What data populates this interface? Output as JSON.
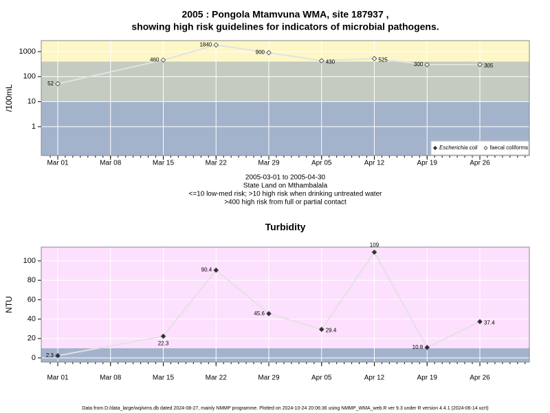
{
  "chart_data": [
    {
      "type": "line",
      "title": [
        "2005 : Pongola Mtamvuna WMA, site 187937 ,",
        "showing high risk guidelines for indicators of microbial pathogens."
      ],
      "ylabel": "/100mL",
      "log_scale": true,
      "grid": true,
      "legend": "bottom-right",
      "x": [
        "Mar 01",
        "Mar 15",
        "Mar 22",
        "Mar 29",
        "Apr 05",
        "Apr 12",
        "Apr 19",
        "Apr 26"
      ],
      "xticks": [
        "Mar 01",
        "Mar 08",
        "Mar 15",
        "Mar 22",
        "Mar 29",
        "Apr 05",
        "Apr 12",
        "Apr 19",
        "Apr 26"
      ],
      "ylim": [
        0.07,
        2750
      ],
      "yticks": [
        1,
        10,
        100,
        1000
      ],
      "bands": [
        {
          "upto": 10,
          "color": "#a3b3cc"
        },
        {
          "upto": 400,
          "color": "#c4cbc0"
        },
        {
          "color": "#fdf7c8"
        }
      ],
      "series": [
        {
          "name": "Escherichia coli",
          "color": "#333333",
          "marker": "filled",
          "values": [
            null,
            null,
            null,
            null,
            null,
            null,
            null,
            null
          ]
        },
        {
          "name": "faecal coliforms",
          "color": "#333333",
          "marker": "open",
          "line_color": "#e2e2e2",
          "values": [
            52,
            460,
            1840,
            900,
            430,
            525,
            300,
            305
          ]
        }
      ],
      "annotations": [
        "2005-03-01 to 2005-04-30",
        "State Land on Mthambalala",
        "<=10 low-med risk; >10 high risk when drinking untreated water",
        ">400 high risk from full or partial contact"
      ]
    },
    {
      "type": "line",
      "title": "Turbidity",
      "ylabel": "NTU",
      "log_scale": false,
      "grid": true,
      "x": [
        "Mar 01",
        "Mar 15",
        "Mar 22",
        "Mar 29",
        "Apr 05",
        "Apr 12",
        "Apr 19",
        "Apr 26"
      ],
      "xticks": [
        "Mar 01",
        "Mar 08",
        "Mar 15",
        "Mar 22",
        "Mar 29",
        "Apr 05",
        "Apr 12",
        "Apr 19",
        "Apr 26"
      ],
      "ylim": [
        -4.3,
        114.2
      ],
      "yticks": [
        0,
        20,
        40,
        60,
        80,
        100
      ],
      "bands": [
        {
          "upto": 10,
          "color": "#a3b3cc"
        },
        {
          "color": "#fde0fd"
        }
      ],
      "series": [
        {
          "name": "Turbidity",
          "color": "#333333",
          "marker": "filled",
          "line_color": "#e2e2e2",
          "values": [
            2.3,
            22.3,
            90.4,
            45.6,
            29.4,
            109,
            10.8,
            37.4
          ]
        }
      ]
    }
  ],
  "footer": "Data from D:/data_large/wq/wms.db dated 2024-08-27, mainly NMMP programme. Plotted on 2024-10-24 20:06:36 using NMMP_WMA_web.R ver 9.3 under R version 4.4.1 (2024-06-14 ucrt)"
}
